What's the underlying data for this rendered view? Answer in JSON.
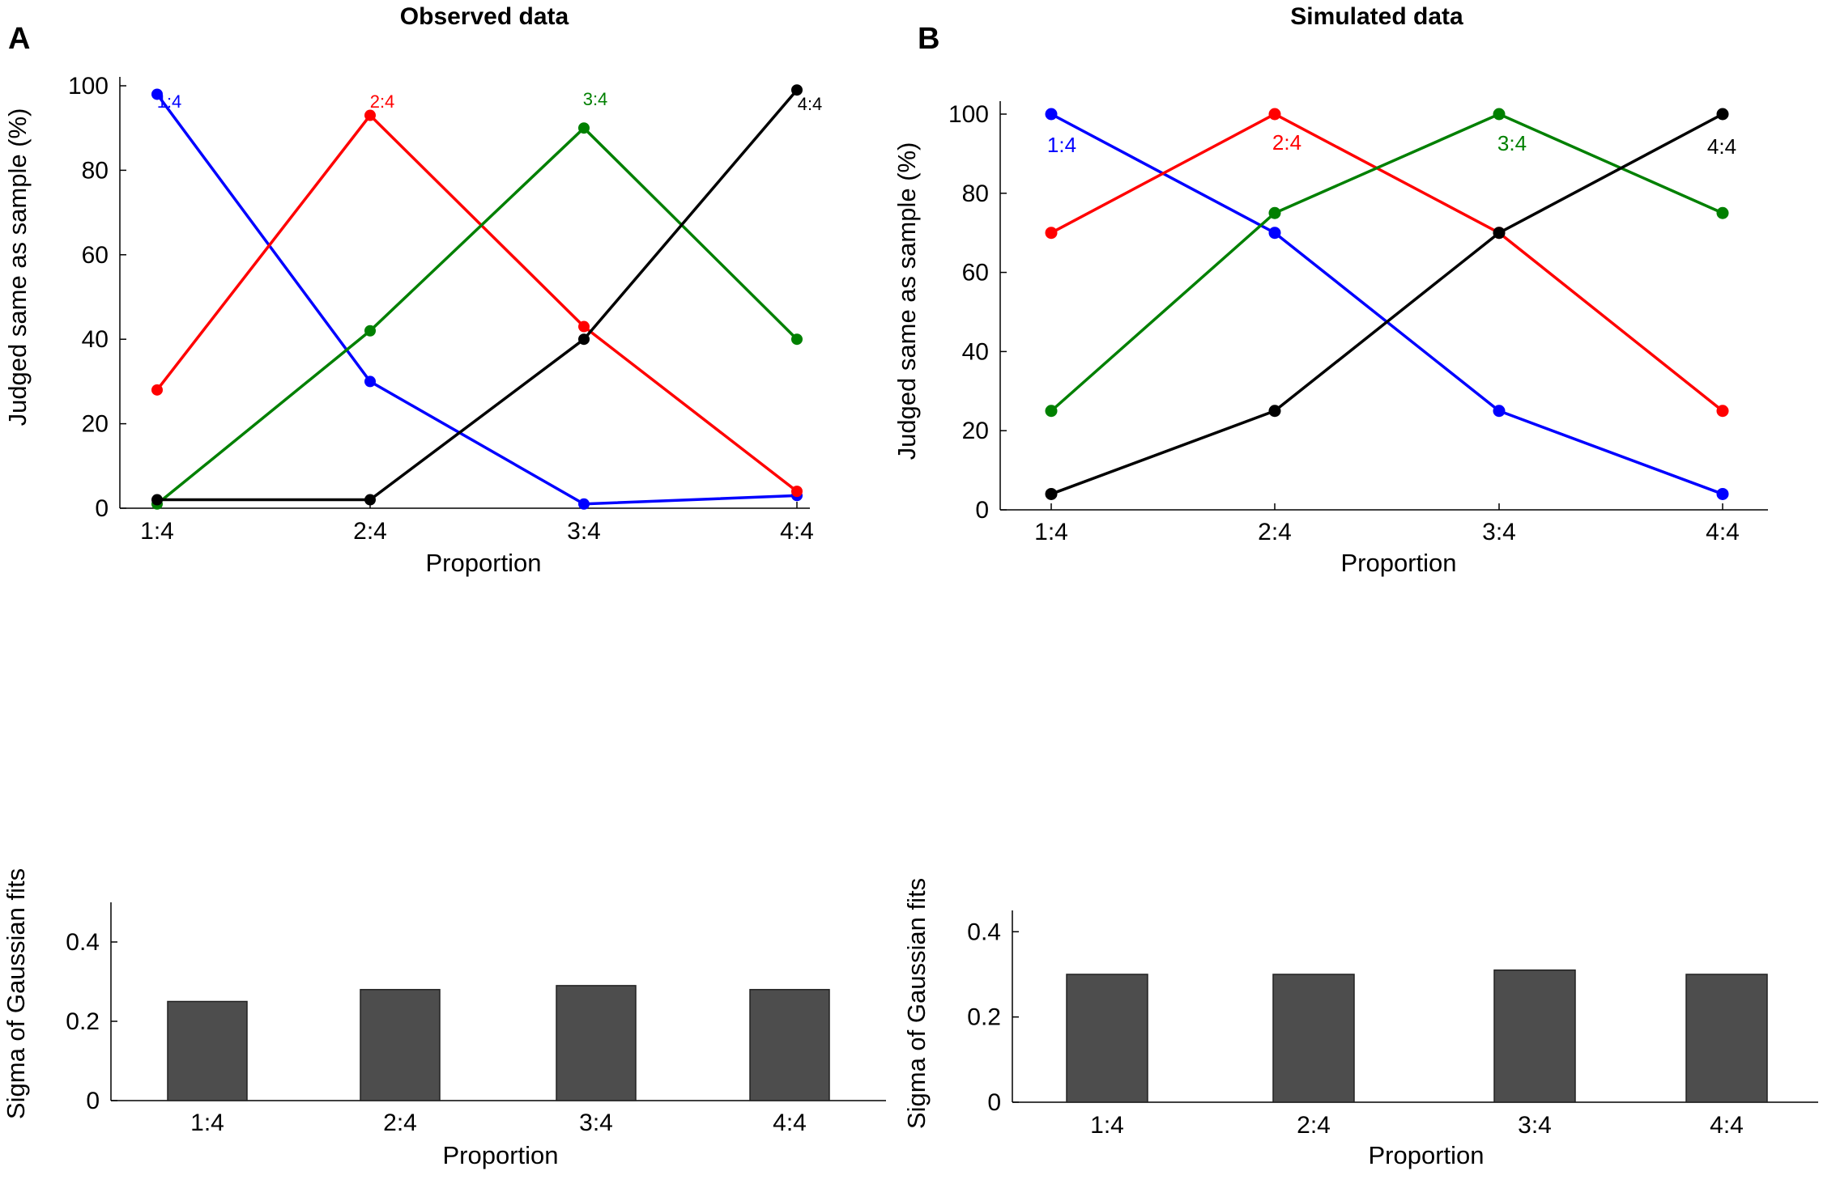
{
  "panels": {
    "a": {
      "letter": "A",
      "title": "Observed data"
    },
    "b": {
      "letter": "B",
      "title": "Simulated data"
    }
  },
  "chart_data": [
    {
      "id": "observed-line",
      "type": "line",
      "title": "Observed data",
      "xlabel": "Proportion",
      "ylabel": "Judged same as sample (%)",
      "categories": [
        "1:4",
        "2:4",
        "3:4",
        "4:4"
      ],
      "ylim": [
        0,
        100
      ],
      "yticks": [
        0,
        20,
        40,
        60,
        80,
        100
      ],
      "series": [
        {
          "name": "1:4",
          "color": "#0000ff",
          "values": [
            98,
            30,
            1,
            3
          ]
        },
        {
          "name": "2:4",
          "color": "#ff0000",
          "values": [
            28,
            93,
            43,
            4
          ]
        },
        {
          "name": "3:4",
          "color": "#008000",
          "values": [
            1,
            42,
            90,
            40
          ]
        },
        {
          "name": "4:4",
          "color": "#000000",
          "values": [
            2,
            2,
            40,
            99
          ]
        }
      ]
    },
    {
      "id": "simulated-line",
      "type": "line",
      "title": "Simulated data",
      "xlabel": "Proportion",
      "ylabel": "Judged same as sample (%)",
      "categories": [
        "1:4",
        "2:4",
        "3:4",
        "4:4"
      ],
      "ylim": [
        0,
        100
      ],
      "yticks": [
        0,
        20,
        40,
        60,
        80,
        100
      ],
      "series": [
        {
          "name": "1:4",
          "color": "#0000ff",
          "values": [
            100,
            70,
            25,
            4
          ]
        },
        {
          "name": "2:4",
          "color": "#ff0000",
          "values": [
            70,
            100,
            70,
            25
          ]
        },
        {
          "name": "3:4",
          "color": "#008000",
          "values": [
            25,
            75,
            100,
            75
          ]
        },
        {
          "name": "4:4",
          "color": "#000000",
          "values": [
            4,
            25,
            70,
            100
          ]
        }
      ]
    },
    {
      "id": "observed-bar",
      "type": "bar",
      "xlabel": "Proportion",
      "ylabel": "Sigma of Gaussian fits",
      "categories": [
        "1:4",
        "2:4",
        "3:4",
        "4:4"
      ],
      "values": [
        0.25,
        0.28,
        0.29,
        0.28
      ],
      "ylim": [
        0,
        0.5
      ],
      "yticks": [
        "0",
        "0.2",
        "0.4"
      ],
      "bar_color": "#4d4d4d"
    },
    {
      "id": "simulated-bar",
      "type": "bar",
      "xlabel": "Proportion",
      "ylabel": "Sigma of Gaussian fits",
      "categories": [
        "1:4",
        "2:4",
        "3:4",
        "4:4"
      ],
      "values": [
        0.3,
        0.3,
        0.31,
        0.3
      ],
      "ylim": [
        0,
        0.45
      ],
      "yticks": [
        "0",
        "0.2",
        "0.4"
      ],
      "bar_color": "#4d4d4d"
    }
  ]
}
